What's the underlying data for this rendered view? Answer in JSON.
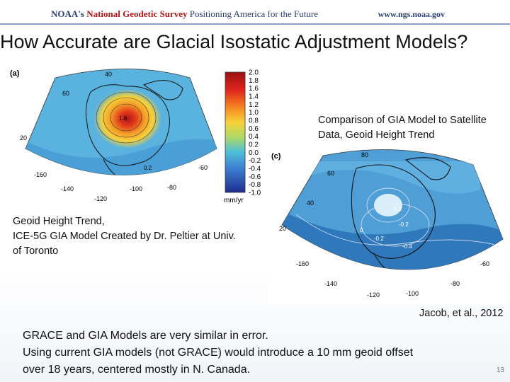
{
  "header": {
    "noaa": "NOAA's",
    "ngs": "National Geodetic Survey",
    "tagline": "Positioning America for the Future",
    "url": "www.ngs.noaa.gov"
  },
  "slide": {
    "title": "How Accurate are Glacial Isostatic Adjustment Models?",
    "left_caption": [
      "Geoid Height Trend,",
      "ICE-5G GIA Model Created by Dr. Peltier at Univ.",
      "of Toronto"
    ],
    "right_caption": [
      "Comparison of GIA Model to Satellite",
      "Data, Geoid Height Trend"
    ],
    "citation": "Jacob, et al., 2012",
    "bullets": [
      "GRACE and GIA Models are very similar in error.",
      "Using current GIA models (not GRACE) would introduce a 10 mm geoid offset",
      "over 18 years, centered mostly in N. Canada."
    ],
    "page_number": "13"
  },
  "figure_a": {
    "panel_label": "(a)",
    "colorbar_ticks": [
      "2.0",
      "1.8",
      "1.6",
      "1.4",
      "1.2",
      "1.0",
      "0.8",
      "0.6",
      "0.4",
      "0.2",
      "0.0",
      "-0.2",
      "-0.4",
      "-0.6",
      "-0.8",
      "-1.0"
    ],
    "unit": "mm/yr",
    "lat_labels": [
      "60",
      "40",
      "20"
    ],
    "lon_labels": [
      "-160",
      "-140",
      "-120",
      "-100",
      "-80",
      "-60"
    ],
    "contour_labels": [
      "0.2",
      "1.8"
    ]
  },
  "figure_c": {
    "panel_label": "(c)",
    "lat_labels": [
      "80",
      "60",
      "40",
      "20"
    ],
    "lon_labels": [
      "-160",
      "-140",
      "-120",
      "-100",
      "-80",
      "-60"
    ],
    "contour_labels": [
      "0.2",
      "-0.2",
      "-0.2",
      "-0.4",
      "0"
    ]
  }
}
